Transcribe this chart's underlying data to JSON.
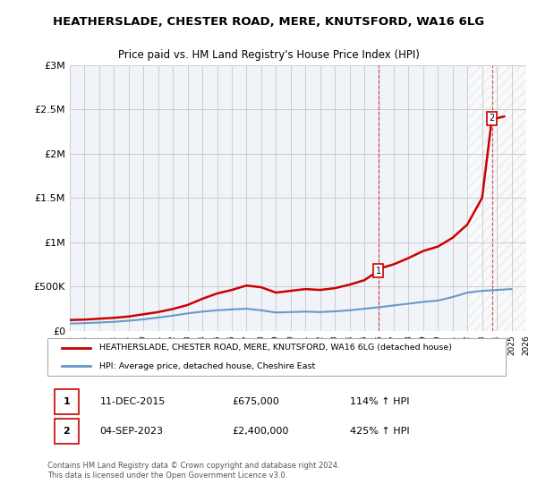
{
  "title": "HEATHERSLADE, CHESTER ROAD, MERE, KNUTSFORD, WA16 6LG",
  "subtitle": "Price paid vs. HM Land Registry's House Price Index (HPI)",
  "legend_line1": "HEATHERSLADE, CHESTER ROAD, MERE, KNUTSFORD, WA16 6LG (detached house)",
  "legend_line2": "HPI: Average price, detached house, Cheshire East",
  "annotation1_label": "1",
  "annotation1_date": "11-DEC-2015",
  "annotation1_price": "£675,000",
  "annotation1_pct": "114% ↑ HPI",
  "annotation2_label": "2",
  "annotation2_date": "04-SEP-2023",
  "annotation2_price": "£2,400,000",
  "annotation2_pct": "425% ↑ HPI",
  "footer": "Contains HM Land Registry data © Crown copyright and database right 2024.\nThis data is licensed under the Open Government Licence v3.0.",
  "red_line_color": "#cc0000",
  "blue_line_color": "#6699cc",
  "background_color": "#ffffff",
  "grid_color": "#cccccc",
  "ylim": [
    0,
    3000000
  ],
  "yticks": [
    0,
    500000,
    1000000,
    1500000,
    2000000,
    2500000,
    3000000
  ],
  "ytick_labels": [
    "£0",
    "£500K",
    "£1M",
    "£1.5M",
    "£2M",
    "£2.5M",
    "£3M"
  ],
  "x_start_year": 1995,
  "x_end_year": 2026,
  "marker1_year": 2015.95,
  "marker2_year": 2023.67,
  "marker1_value": 675000,
  "marker2_value": 2400000,
  "red_years": [
    1995,
    1996,
    1997,
    1998,
    1999,
    2000,
    2001,
    2002,
    2003,
    2004,
    2005,
    2006,
    2007,
    2008,
    2009,
    2010,
    2011,
    2012,
    2013,
    2014,
    2015,
    2015.95,
    2016,
    2017,
    2018,
    2019,
    2020,
    2021,
    2022,
    2023,
    2023.67,
    2024,
    2024.5
  ],
  "red_values": [
    120000,
    125000,
    135000,
    145000,
    160000,
    185000,
    210000,
    245000,
    290000,
    360000,
    420000,
    460000,
    510000,
    490000,
    430000,
    450000,
    470000,
    460000,
    480000,
    520000,
    570000,
    675000,
    700000,
    750000,
    820000,
    900000,
    950000,
    1050000,
    1200000,
    1500000,
    2400000,
    2400000,
    2420000
  ],
  "blue_years": [
    1995,
    1996,
    1997,
    1998,
    1999,
    2000,
    2001,
    2002,
    2003,
    2004,
    2005,
    2006,
    2007,
    2008,
    2009,
    2010,
    2011,
    2012,
    2013,
    2014,
    2015,
    2016,
    2017,
    2018,
    2019,
    2020,
    2021,
    2022,
    2023,
    2024,
    2025
  ],
  "blue_values": [
    80000,
    85000,
    92000,
    100000,
    112000,
    128000,
    148000,
    170000,
    195000,
    215000,
    230000,
    240000,
    248000,
    230000,
    205000,
    210000,
    215000,
    210000,
    218000,
    230000,
    248000,
    265000,
    285000,
    305000,
    325000,
    340000,
    380000,
    430000,
    450000,
    460000,
    470000
  ]
}
